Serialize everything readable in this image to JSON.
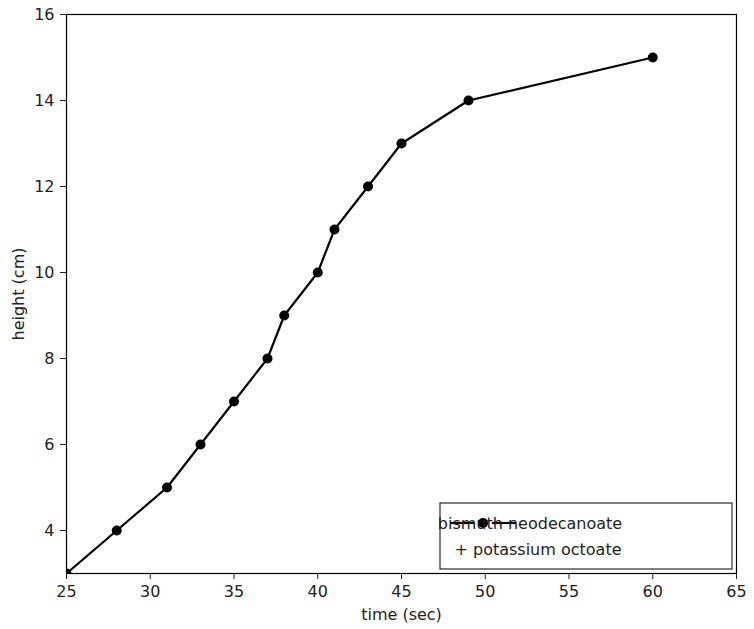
{
  "chart_data": {
    "type": "line",
    "x_label": "time (sec)",
    "y_label": "height (cm)",
    "series": [
      {
        "name": "bismuth neodecanoate + potassium octoate",
        "color": "#000000",
        "marker": "circle",
        "line_style": "solid",
        "x": [
          25,
          28,
          31,
          33,
          35,
          37,
          38,
          40,
          41,
          43,
          45,
          49,
          60
        ],
        "values": [
          3,
          4,
          5,
          6,
          7,
          8,
          9,
          10,
          11,
          12,
          13,
          14,
          15
        ]
      }
    ],
    "xlim": [
      25,
      65
    ],
    "xticks": [
      25,
      30,
      35,
      40,
      45,
      50,
      55,
      60,
      65
    ],
    "ylim": [
      3,
      16
    ],
    "yticks": [
      4,
      6,
      8,
      10,
      12,
      14,
      16
    ],
    "legend": "bottom-right",
    "grid": false
  }
}
